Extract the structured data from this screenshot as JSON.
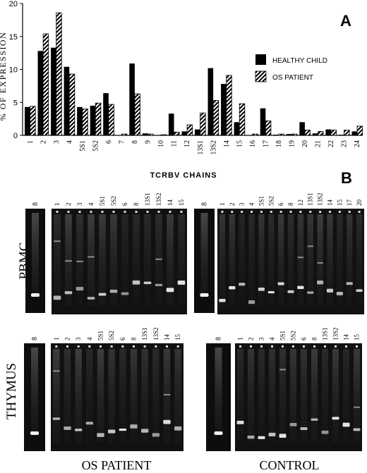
{
  "panel_a": {
    "letter": "A",
    "ylabel": "% OF EXPRESSION",
    "xlabel": "TCRBV CHAINS",
    "legend": [
      {
        "label": "HEALTHY CHILD",
        "style": "solid"
      },
      {
        "label": "OS PATIENT",
        "style": "hatched"
      }
    ]
  },
  "chart_data": {
    "type": "bar",
    "title": "",
    "xlabel": "TCRBV CHAINS",
    "ylabel": "% OF EXPRESSION",
    "ylim": [
      0,
      20
    ],
    "yticks": [
      0,
      5,
      10,
      15,
      20
    ],
    "legend_position": "right",
    "categories": [
      "1",
      "2",
      "3",
      "4",
      "5S1",
      "5S2",
      "6",
      "7",
      "8",
      "9",
      "10",
      "11",
      "12",
      "13S1",
      "13S2",
      "14",
      "15",
      "16",
      "17",
      "18",
      "19",
      "20",
      "21",
      "22",
      "23",
      "24"
    ],
    "series": [
      {
        "name": "HEALTHY CHILD",
        "values": [
          4.3,
          12.8,
          13.3,
          10.4,
          4.3,
          4.5,
          6.4,
          0.0,
          10.9,
          0.3,
          0.0,
          3.3,
          0.6,
          0.9,
          10.2,
          7.8,
          2.0,
          0.0,
          4.1,
          0.1,
          0.2,
          2.0,
          0.3,
          0.9,
          0.1,
          0.6
        ]
      },
      {
        "name": "OS PATIENT",
        "values": [
          4.4,
          15.4,
          18.6,
          9.3,
          4.0,
          4.9,
          4.7,
          0.2,
          6.3,
          0.2,
          0.1,
          0.5,
          1.6,
          3.4,
          5.3,
          9.1,
          4.8,
          0.2,
          2.2,
          0.2,
          0.2,
          0.8,
          0.6,
          0.8,
          0.8,
          1.4
        ]
      }
    ]
  },
  "panel_b": {
    "letter": "B",
    "row_labels": [
      "PBMC",
      "THYMUS"
    ],
    "col_labels": [
      "OS PATIENT",
      "CONTROL"
    ],
    "gels": [
      {
        "id": "pbmc-os",
        "single_lane": "8",
        "lanes": [
          "1",
          "2",
          "3",
          "4",
          "5S1",
          "5S2",
          "6",
          "8",
          "13S1",
          "13S2",
          "14",
          "15"
        ]
      },
      {
        "id": "pbmc-ctrl",
        "single_lane": "8",
        "lanes": [
          "1",
          "2",
          "3",
          "4",
          "5S1",
          "5S2",
          "6",
          "8",
          "12",
          "13S1",
          "13S2",
          "14",
          "15",
          "17",
          "20"
        ]
      },
      {
        "id": "thymus-os",
        "single_lane": "8",
        "lanes": [
          "1",
          "2",
          "3",
          "4",
          "5S1",
          "5S2",
          "6",
          "8",
          "13S1",
          "13S2",
          "14",
          "15"
        ]
      },
      {
        "id": "thymus-ctrl",
        "single_lane": "8",
        "lanes": [
          "1",
          "2",
          "3",
          "4",
          "5S1",
          "5S2",
          "6",
          "8",
          "13S1",
          "13S2",
          "14",
          "15"
        ]
      }
    ]
  }
}
